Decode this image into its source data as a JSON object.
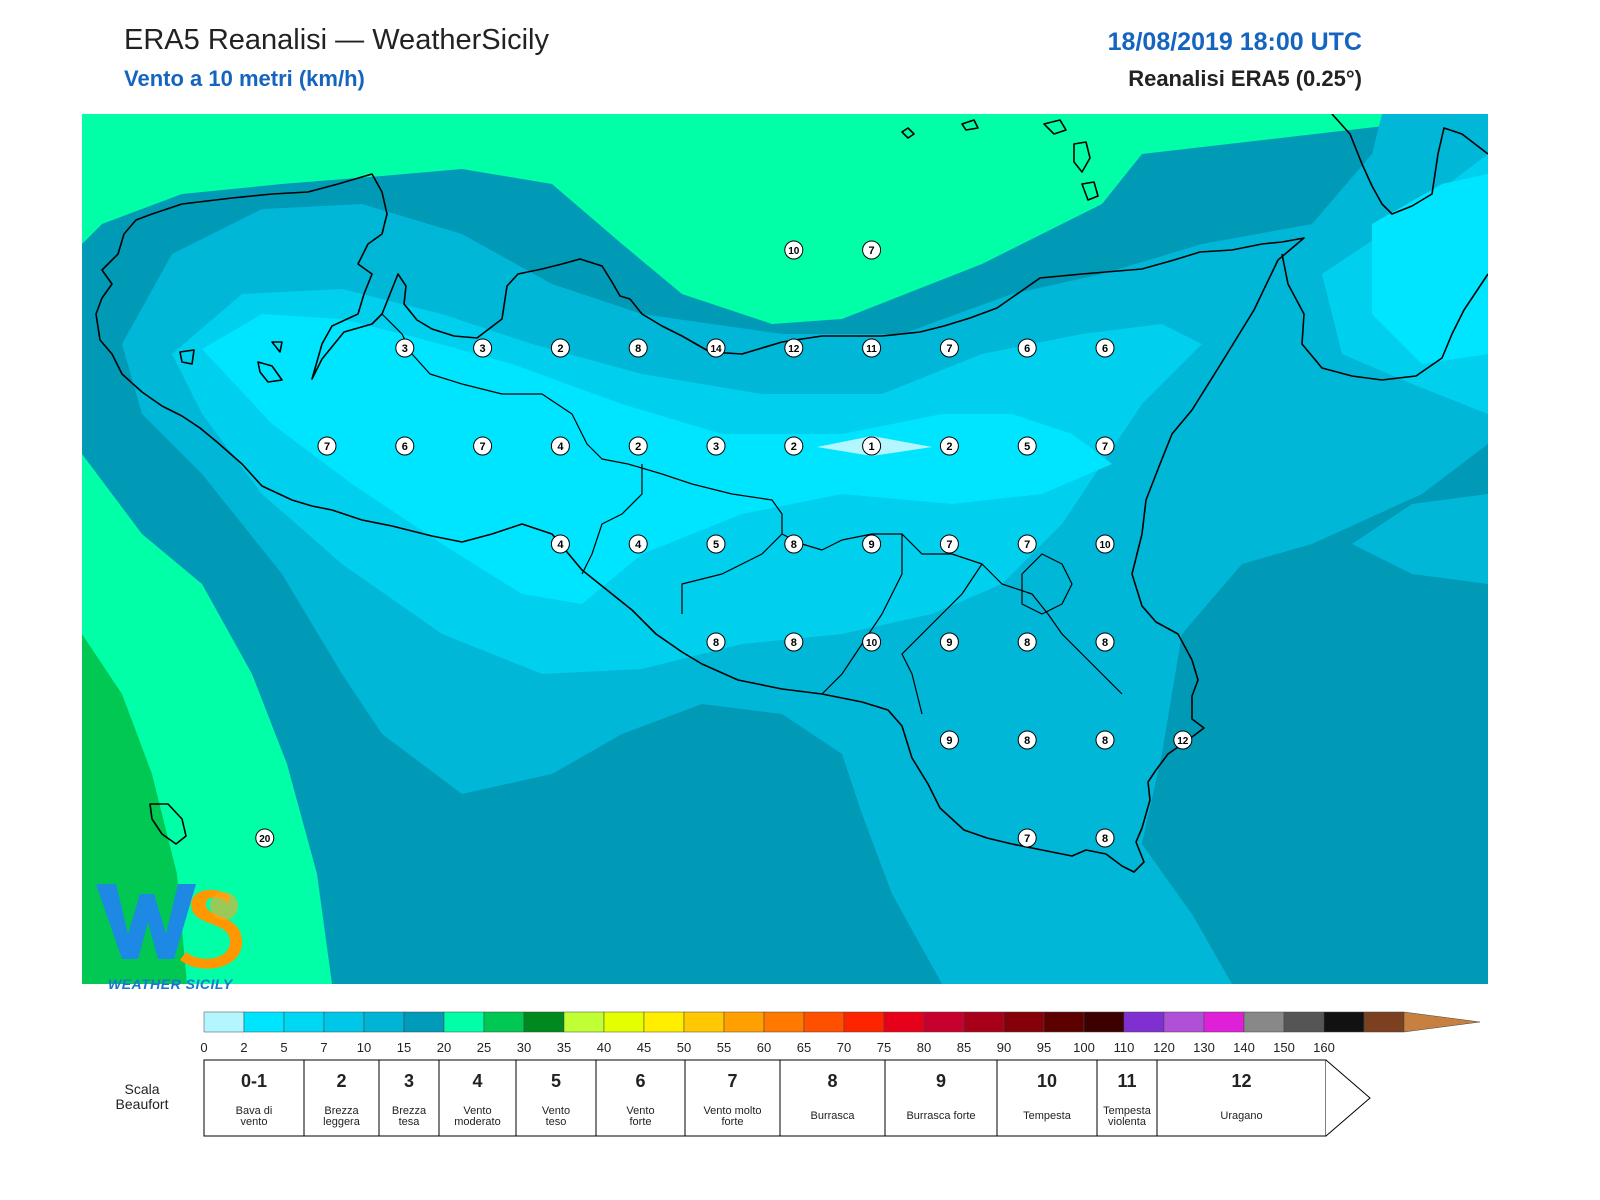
{
  "header": {
    "title": "ERA5 Reanalisi — WeatherSicily",
    "subtitle": "Vento a 10 metri (km/h)",
    "datetime": "18/08/2019 18:00 UTC",
    "source": "Reanalisi ERA5 (0.25°)"
  },
  "logo": {
    "icon": "ws-logo-icon",
    "text": "WEATHER SICILY"
  },
  "colors": {
    "cyan_light": "#00e5ff",
    "cyan": "#00cfee",
    "cyan_mid": "#00b7d8",
    "teal": "#0099b6",
    "aqua_green": "#00ffa6",
    "green": "#00c853",
    "coast": "#000000"
  },
  "legend": {
    "ticks": [
      "0",
      "2",
      "5",
      "7",
      "10",
      "15",
      "20",
      "25",
      "30",
      "35",
      "40",
      "45",
      "50",
      "55",
      "60",
      "65",
      "70",
      "75",
      "80",
      "85",
      "90",
      "95",
      "100",
      "110",
      "120",
      "130",
      "140",
      "150",
      "160"
    ],
    "bins": [
      "#b3f6ff",
      "#00e5ff",
      "#00d7f5",
      "#00c6e8",
      "#00b4d6",
      "#009bb8",
      "#00ffa6",
      "#00c853",
      "#008a1e",
      "#c0ff33",
      "#e5ff00",
      "#ffee00",
      "#ffc800",
      "#ffa000",
      "#ff7800",
      "#ff5000",
      "#ff2400",
      "#e6001a",
      "#c8002e",
      "#a80018",
      "#850008",
      "#5c0000",
      "#3c0000",
      "#8030d0",
      "#b050d8",
      "#e020d8",
      "#888888",
      "#555555",
      "#111111",
      "#7a4020",
      "#c88040"
    ],
    "beaufort_title": "Scala Beaufort",
    "beaufort": [
      {
        "num": "0-1",
        "desc": "Bava di vento"
      },
      {
        "num": "2",
        "desc": "Brezza leggera"
      },
      {
        "num": "3",
        "desc": "Brezza tesa"
      },
      {
        "num": "4",
        "desc": "Vento moderato"
      },
      {
        "num": "5",
        "desc": "Vento teso"
      },
      {
        "num": "6",
        "desc": "Vento forte"
      },
      {
        "num": "7",
        "desc": "Vento molto forte"
      },
      {
        "num": "8",
        "desc": "Burrasca"
      },
      {
        "num": "9",
        "desc": "Burrasca forte"
      },
      {
        "num": "10",
        "desc": "Tempesta"
      },
      {
        "num": "11",
        "desc": "Tempesta violenta"
      },
      {
        "num": "12",
        "desc": "Uragano"
      }
    ]
  },
  "stations": [
    {
      "v": "10",
      "lon": 15.0,
      "lat": 38.3
    },
    {
      "v": "7",
      "lon": 15.5,
      "lat": 38.3
    },
    {
      "v": "3",
      "lon": 12.5,
      "lat": 38.0
    },
    {
      "v": "3",
      "lon": 13.0,
      "lat": 38.0
    },
    {
      "v": "2",
      "lon": 13.5,
      "lat": 38.0
    },
    {
      "v": "8",
      "lon": 14.0,
      "lat": 38.0
    },
    {
      "v": "14",
      "lon": 14.5,
      "lat": 38.0
    },
    {
      "v": "12",
      "lon": 15.0,
      "lat": 38.0
    },
    {
      "v": "11",
      "lon": 15.5,
      "lat": 38.0
    },
    {
      "v": "7",
      "lon": 16.0,
      "lat": 38.0
    },
    {
      "v": "6",
      "lon": 16.5,
      "lat": 38.0
    },
    {
      "v": "6",
      "lon": 17.0,
      "lat": 38.0
    },
    {
      "v": "7",
      "lon": 12.0,
      "lat": 37.7
    },
    {
      "v": "6",
      "lon": 12.5,
      "lat": 37.7
    },
    {
      "v": "7",
      "lon": 13.0,
      "lat": 37.7
    },
    {
      "v": "4",
      "lon": 13.5,
      "lat": 37.7
    },
    {
      "v": "2",
      "lon": 14.0,
      "lat": 37.7
    },
    {
      "v": "3",
      "lon": 14.5,
      "lat": 37.7
    },
    {
      "v": "2",
      "lon": 15.0,
      "lat": 37.7
    },
    {
      "v": "1",
      "lon": 15.5,
      "lat": 37.7
    },
    {
      "v": "2",
      "lon": 16.0,
      "lat": 37.7
    },
    {
      "v": "5",
      "lon": 16.5,
      "lat": 37.7
    },
    {
      "v": "7",
      "lon": 17.0,
      "lat": 37.7
    },
    {
      "v": "4",
      "lon": 13.5,
      "lat": 37.4
    },
    {
      "v": "4",
      "lon": 14.0,
      "lat": 37.4
    },
    {
      "v": "5",
      "lon": 14.5,
      "lat": 37.4
    },
    {
      "v": "8",
      "lon": 15.0,
      "lat": 37.4
    },
    {
      "v": "9",
      "lon": 15.5,
      "lat": 37.4
    },
    {
      "v": "7",
      "lon": 16.0,
      "lat": 37.4
    },
    {
      "v": "7",
      "lon": 16.5,
      "lat": 37.4
    },
    {
      "v": "10",
      "lon": 17.0,
      "lat": 37.4
    },
    {
      "v": "8",
      "lon": 14.5,
      "lat": 37.1
    },
    {
      "v": "8",
      "lon": 15.0,
      "lat": 37.1
    },
    {
      "v": "10",
      "lon": 15.5,
      "lat": 37.1
    },
    {
      "v": "9",
      "lon": 16.0,
      "lat": 37.1
    },
    {
      "v": "8",
      "lon": 16.5,
      "lat": 37.1
    },
    {
      "v": "8",
      "lon": 17.0,
      "lat": 37.1
    },
    {
      "v": "9",
      "lon": 16.0,
      "lat": 36.8
    },
    {
      "v": "8",
      "lon": 16.5,
      "lat": 36.8
    },
    {
      "v": "8",
      "lon": 17.0,
      "lat": 36.8
    },
    {
      "v": "12",
      "lon": 17.5,
      "lat": 36.8
    },
    {
      "v": "7",
      "lon": 16.5,
      "lat": 36.5
    },
    {
      "v": "8",
      "lon": 17.0,
      "lat": 36.5
    },
    {
      "v": "20",
      "lon": 11.6,
      "lat": 36.5
    }
  ]
}
